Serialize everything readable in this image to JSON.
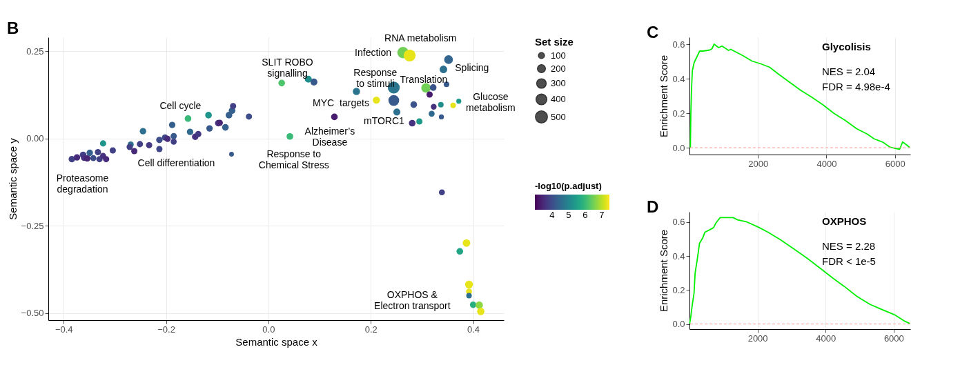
{
  "chart_data": [
    {
      "type": "bubble",
      "xlabel": "Semantic space x",
      "ylabel": "Semantic space y",
      "legend_title": "Set size",
      "clabel": "-log10(p.adjust)",
      "xlim": [
        -0.43,
        0.46
      ],
      "ylim": [
        -0.52,
        0.29
      ],
      "xticks": [
        {
          "value": -0.4,
          "label": "−0.4"
        },
        {
          "value": -0.2,
          "label": "−0.2"
        },
        {
          "value": 0,
          "label": "0.0"
        },
        0.2,
        0.4
      ],
      "yticks": [
        0.25,
        {
          "value": 0,
          "label": "0.00"
        },
        {
          "value": -0.25,
          "label": "−0.25"
        },
        {
          "value": -0.5,
          "label": "−0.50"
        }
      ],
      "grid": true,
      "size_legend": [
        100,
        200,
        300,
        400,
        500
      ],
      "clim": [
        2.96,
        7.46
      ],
      "cticks": [
        4,
        5,
        6,
        7
      ],
      "x": [
        -0.384,
        -0.374,
        -0.362,
        -0.36,
        -0.354,
        -0.349,
        -0.342,
        -0.333,
        -0.33,
        -0.323,
        -0.317,
        -0.304,
        -0.323,
        -0.269,
        -0.271,
        -0.262,
        -0.251,
        -0.233,
        -0.213,
        -0.245,
        -0.213,
        -0.202,
        -0.197,
        -0.185,
        -0.185,
        -0.188,
        -0.157,
        -0.153,
        -0.143,
        -0.137,
        -0.117,
        -0.115,
        -0.098,
        -0.095,
        -0.084,
        -0.077,
        -0.071,
        -0.069,
        -0.038,
        -0.072,
        0.026,
        0.042,
        0.078,
        0.089,
        0.129,
        0.172,
        0.211,
        0.245,
        0.245,
        0.251,
        0.263,
        0.276,
        0.284,
        0.281,
        0.295,
        0.308,
        0.315,
        0.322,
        0.319,
        0.323,
        0.337,
        0.338,
        0.348,
        0.342,
        0.352,
        0.361,
        0.372,
        0.339,
        0.387,
        0.374,
        0.392,
        0.392,
        0.392,
        0.4,
        0.412,
        0.415
      ],
      "values": [
        -0.059,
        -0.054,
        -0.047,
        -0.055,
        -0.057,
        -0.041,
        -0.056,
        -0.039,
        -0.059,
        -0.05,
        -0.059,
        -0.034,
        -0.014,
        -0.017,
        -0.024,
        -0.036,
        -0.016,
        -0.019,
        -0.03,
        0.021,
        -0.004,
        0.003,
        -0.001,
        0.007,
        -0.009,
        0.039,
        0.057,
        0.019,
        0.005,
        0.013,
        0.067,
        0.029,
        0.044,
        0.045,
        0.032,
        0.067,
        0.08,
        0.093,
        0.063,
        -0.045,
        0.159,
        0.006,
        0.17,
        0.162,
        0.062,
        0.135,
        0.11,
        0.146,
        0.109,
        0.076,
        0.246,
        0.238,
        0.097,
        0.044,
        0.049,
        0.145,
        0.126,
        0.146,
        0.071,
        0.091,
        0.097,
        0.062,
        0.155,
        0.198,
        0.226,
        0.095,
        0.107,
        -0.154,
        -0.299,
        -0.323,
        -0.418,
        -0.438,
        -0.45,
        -0.476,
        -0.477,
        -0.495
      ],
      "sizes": [
        120,
        120,
        130,
        120,
        120,
        120,
        100,
        110,
        110,
        110,
        110,
        110,
        110,
        100,
        110,
        110,
        110,
        110,
        110,
        120,
        120,
        110,
        110,
        110,
        100,
        120,
        130,
        120,
        120,
        110,
        130,
        120,
        120,
        110,
        130,
        130,
        130,
        110,
        110,
        50,
        130,
        130,
        150,
        150,
        130,
        160,
        160,
        500,
        400,
        150,
        450,
        500,
        130,
        130,
        110,
        300,
        110,
        130,
        100,
        90,
        80,
        60,
        80,
        180,
        250,
        80,
        60,
        100,
        180,
        130,
        200,
        100,
        80,
        120,
        170,
        170
      ],
      "cvalues": [
        3.8,
        3.5,
        3.8,
        3.6,
        3.4,
        4.3,
        4.0,
        3.8,
        3.8,
        3.6,
        3.5,
        3.8,
        5.3,
        4.6,
        3.8,
        3.5,
        3.8,
        3.7,
        3.9,
        4.6,
        4.0,
        3.9,
        3.5,
        4.2,
        3.8,
        4.3,
        6.0,
        4.5,
        3.6,
        3.7,
        5.3,
        4.2,
        3.6,
        3.4,
        4.3,
        4.3,
        4.3,
        3.8,
        4.0,
        4.2,
        6.2,
        6.0,
        5.2,
        4.2,
        3.3,
        4.7,
        7.3,
        4.7,
        4.2,
        4.6,
        6.5,
        7.3,
        4.1,
        3.6,
        5.4,
        6.5,
        3.3,
        4.1,
        4.5,
        3.6,
        5.2,
        4.2,
        4.2,
        4.6,
        4.4,
        7.3,
        5.4,
        3.8,
        7.3,
        5.6,
        7.3,
        7.3,
        4.6,
        5.8,
        6.7,
        7.3
      ],
      "annotations": [
        "B",
        "Proteasome\ndegradation",
        "Cell differentiation",
        "Cell cycle",
        "SLIT ROBO\nsignalling",
        "Response to\nChemical Stress",
        "MYC",
        "targets",
        "Alzheimer’s\nDisease",
        "Infection",
        "RNA metabolism",
        "Response\nto stimuli",
        "Translation",
        "Splicing",
        "mTORC1",
        "Glucose\nmetabolism",
        "OXPHOS &\nElectron transport"
      ]
    },
    {
      "type": "line",
      "title": "Glycolisis",
      "ylabel": "Enrichment Score",
      "xlim": [
        0,
        6450
      ],
      "ylim": [
        -0.04,
        0.64
      ],
      "xticks": [
        2000,
        4000,
        6000
      ],
      "yticks": [
        {
          "value": 0,
          "label": "0.0"
        },
        0.2,
        0.4,
        0.6
      ],
      "grid": "x",
      "ref_lines": [
        {
          "axis": "y",
          "value": 0,
          "color": "#ff9999",
          "line_style": "dashed"
        }
      ],
      "annotations": [
        "C",
        "NES = 2.04",
        "FDR = 4.98e-4"
      ],
      "series": [
        {
          "color": "#00ee00",
          "x": [
            26,
            39,
            58,
            84,
            136,
            201,
            298,
            396,
            590,
            655,
            720,
            850,
            948,
            1142,
            1207,
            1564,
            1824,
            2083,
            2343,
            2602,
            2927,
            3251,
            3576,
            3900,
            4225,
            4549,
            4874,
            5198,
            5393,
            5653,
            5848,
            5977,
            6140,
            6224,
            6334,
            6432
          ],
          "values": [
            0.0,
            0.185,
            0.332,
            0.446,
            0.493,
            0.52,
            0.56,
            0.56,
            0.566,
            0.573,
            0.6,
            0.58,
            0.589,
            0.564,
            0.57,
            0.533,
            0.502,
            0.486,
            0.466,
            0.426,
            0.379,
            0.332,
            0.292,
            0.248,
            0.198,
            0.158,
            0.111,
            0.078,
            0.051,
            0.031,
            0.004,
            -0.003,
            -0.009,
            0.033,
            0.017,
            0.001
          ]
        }
      ]
    },
    {
      "type": "line",
      "title": "OXPHOS",
      "ylabel": "Enrichment Score",
      "xlim": [
        0,
        6490
      ],
      "ylim": [
        -0.03,
        0.66
      ],
      "xticks": [
        2000,
        4000,
        6000
      ],
      "yticks": [
        {
          "value": 0,
          "label": "0.0"
        },
        0.2,
        0.4,
        0.6
      ],
      "grid": "x",
      "ref_lines": [
        {
          "axis": "y",
          "value": 0,
          "color": "#ff9999",
          "line_style": "dashed"
        }
      ],
      "annotations": [
        "D",
        "NES = 2.28",
        "FDR < 1e-5"
      ],
      "series": [
        {
          "color": "#00ee00",
          "x": [
            6,
            38,
            83,
            134,
            166,
            230,
            294,
            390,
            454,
            581,
            709,
            773,
            901,
            1284,
            1412,
            1668,
            2051,
            2307,
            2690,
            3074,
            3457,
            3840,
            4224,
            4543,
            4927,
            5310,
            5693,
            6013,
            6173,
            6332,
            6473
          ],
          "values": [
            0.003,
            0.042,
            0.115,
            0.182,
            0.301,
            0.381,
            0.474,
            0.507,
            0.54,
            0.553,
            0.567,
            0.593,
            0.626,
            0.626,
            0.613,
            0.602,
            0.567,
            0.54,
            0.494,
            0.441,
            0.387,
            0.328,
            0.268,
            0.222,
            0.162,
            0.115,
            0.082,
            0.056,
            0.036,
            0.016,
            0.003
          ]
        }
      ]
    }
  ]
}
